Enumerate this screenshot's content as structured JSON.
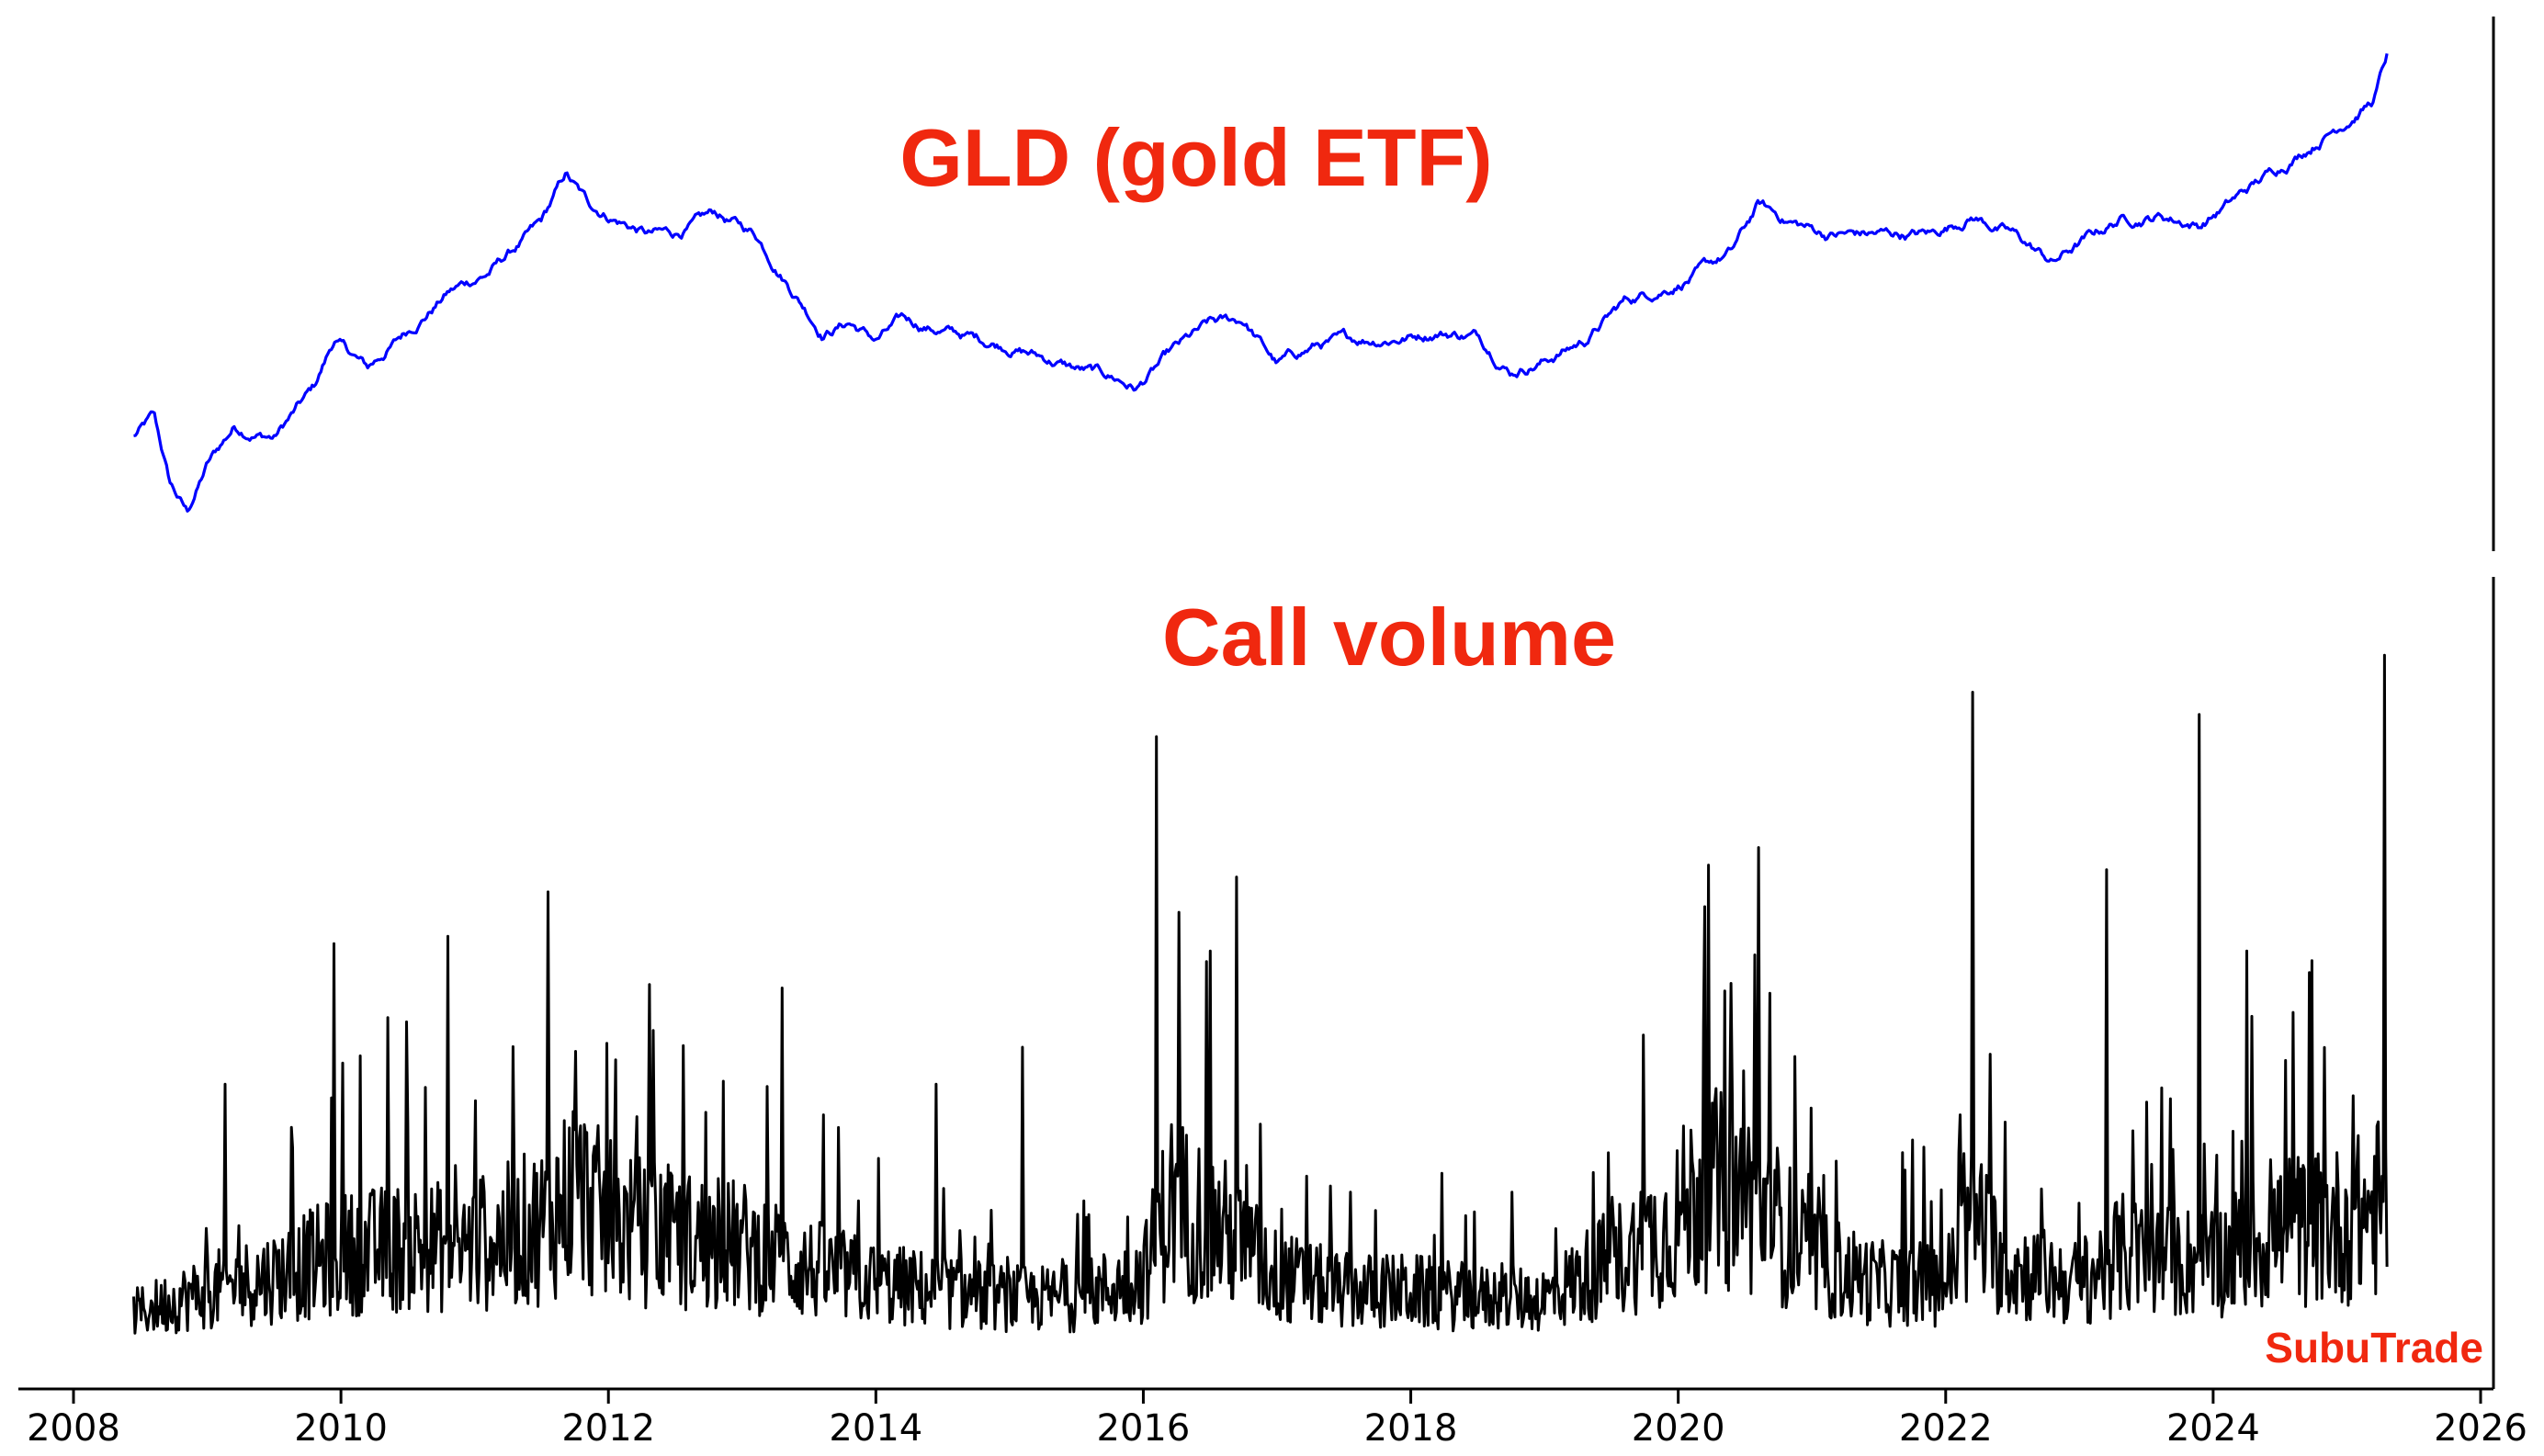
{
  "chart_data": [
    {
      "type": "line",
      "title": "GLD (gold ETF)",
      "title_color": "#f0280f",
      "xlabel": "",
      "ylabel": "",
      "x_ticks": [
        "2008",
        "2010",
        "2012",
        "2014",
        "2016",
        "2018",
        "2020",
        "2022",
        "2024",
        "2026"
      ],
      "xlim": [
        2008,
        2026
      ],
      "grid": false,
      "series": [
        {
          "color": "#0000ff",
          "points": [
            [
              2008.45,
              0.18
            ],
            [
              2008.6,
              0.22
            ],
            [
              2008.72,
              0.08
            ],
            [
              2008.85,
              0.02
            ],
            [
              2009.0,
              0.12
            ],
            [
              2009.2,
              0.2
            ],
            [
              2009.5,
              0.18
            ],
            [
              2009.8,
              0.28
            ],
            [
              2009.95,
              0.38
            ],
            [
              2010.2,
              0.32
            ],
            [
              2010.5,
              0.4
            ],
            [
              2010.8,
              0.48
            ],
            [
              2011.1,
              0.52
            ],
            [
              2011.5,
              0.62
            ],
            [
              2011.68,
              0.72
            ],
            [
              2011.85,
              0.66
            ],
            [
              2012.0,
              0.64
            ],
            [
              2012.3,
              0.6
            ],
            [
              2012.5,
              0.6
            ],
            [
              2012.8,
              0.64
            ],
            [
              2013.1,
              0.6
            ],
            [
              2013.3,
              0.52
            ],
            [
              2013.6,
              0.4
            ],
            [
              2013.8,
              0.42
            ],
            [
              2014.0,
              0.38
            ],
            [
              2014.2,
              0.42
            ],
            [
              2014.5,
              0.4
            ],
            [
              2014.8,
              0.38
            ],
            [
              2015.0,
              0.37
            ],
            [
              2015.2,
              0.35
            ],
            [
              2015.5,
              0.32
            ],
            [
              2015.8,
              0.3
            ],
            [
              2015.95,
              0.28
            ],
            [
              2016.2,
              0.35
            ],
            [
              2016.5,
              0.41
            ],
            [
              2016.75,
              0.42
            ],
            [
              2017.0,
              0.33
            ],
            [
              2017.3,
              0.37
            ],
            [
              2017.6,
              0.38
            ],
            [
              2018.0,
              0.39
            ],
            [
              2018.2,
              0.4
            ],
            [
              2018.5,
              0.39
            ],
            [
              2018.75,
              0.32
            ],
            [
              2019.0,
              0.34
            ],
            [
              2019.3,
              0.38
            ],
            [
              2019.6,
              0.46
            ],
            [
              2019.9,
              0.49
            ],
            [
              2020.15,
              0.52
            ],
            [
              2020.4,
              0.56
            ],
            [
              2020.6,
              0.66
            ],
            [
              2020.8,
              0.63
            ],
            [
              2021.1,
              0.6
            ],
            [
              2021.3,
              0.6
            ],
            [
              2021.6,
              0.6
            ],
            [
              2021.9,
              0.6
            ],
            [
              2022.2,
              0.64
            ],
            [
              2022.5,
              0.6
            ],
            [
              2022.8,
              0.54
            ],
            [
              2023.0,
              0.58
            ],
            [
              2023.3,
              0.63
            ],
            [
              2023.6,
              0.64
            ],
            [
              2023.9,
              0.62
            ],
            [
              2024.2,
              0.68
            ],
            [
              2024.5,
              0.74
            ],
            [
              2024.8,
              0.8
            ],
            [
              2025.0,
              0.84
            ],
            [
              2025.2,
              0.88
            ],
            [
              2025.3,
              0.97
            ]
          ]
        }
      ]
    },
    {
      "type": "line",
      "title": "Call volume",
      "title_color": "#f0280f",
      "xlabel": "",
      "ylabel": "",
      "x_ticks": [
        "2008",
        "2010",
        "2012",
        "2014",
        "2016",
        "2018",
        "2020",
        "2022",
        "2024",
        "2026"
      ],
      "xlim": [
        2008,
        2026
      ],
      "grid": false,
      "series": [
        {
          "color": "#000000",
          "baseline": [
            [
              2008.45,
              0.05
            ],
            [
              2009.0,
              0.08
            ],
            [
              2009.5,
              0.1
            ],
            [
              2010.0,
              0.13
            ],
            [
              2010.5,
              0.14
            ],
            [
              2011.0,
              0.14
            ],
            [
              2011.5,
              0.17
            ],
            [
              2011.75,
              0.22
            ],
            [
              2012.0,
              0.17
            ],
            [
              2012.5,
              0.15
            ],
            [
              2013.0,
              0.14
            ],
            [
              2013.5,
              0.11
            ],
            [
              2014.0,
              0.09
            ],
            [
              2014.5,
              0.08
            ],
            [
              2015.0,
              0.07
            ],
            [
              2015.5,
              0.07
            ],
            [
              2016.0,
              0.1
            ],
            [
              2016.2,
              0.2
            ],
            [
              2016.6,
              0.16
            ],
            [
              2017.0,
              0.1
            ],
            [
              2017.5,
              0.08
            ],
            [
              2018.0,
              0.08
            ],
            [
              2018.5,
              0.07
            ],
            [
              2019.0,
              0.07
            ],
            [
              2019.5,
              0.12
            ],
            [
              2019.9,
              0.16
            ],
            [
              2020.2,
              0.22
            ],
            [
              2020.6,
              0.2
            ],
            [
              2021.0,
              0.12
            ],
            [
              2021.5,
              0.09
            ],
            [
              2022.0,
              0.09
            ],
            [
              2022.2,
              0.17
            ],
            [
              2022.5,
              0.11
            ],
            [
              2023.0,
              0.09
            ],
            [
              2023.3,
              0.13
            ],
            [
              2023.6,
              0.12
            ],
            [
              2024.0,
              0.12
            ],
            [
              2024.5,
              0.16
            ],
            [
              2025.0,
              0.17
            ],
            [
              2025.3,
              0.2
            ]
          ],
          "spikes": [
            [
              2009.13,
              0.36
            ],
            [
              2009.95,
              0.55
            ],
            [
              2010.35,
              0.45
            ],
            [
              2010.8,
              0.56
            ],
            [
              2011.55,
              0.62
            ],
            [
              2013.3,
              0.49
            ],
            [
              2014.45,
              0.36
            ],
            [
              2015.1,
              0.41
            ],
            [
              2016.1,
              0.83
            ],
            [
              2016.5,
              0.54
            ],
            [
              2016.7,
              0.64
            ],
            [
              2020.2,
              0.6
            ],
            [
              2020.6,
              0.68
            ],
            [
              2022.2,
              0.89
            ],
            [
              2023.2,
              0.65
            ],
            [
              2023.9,
              0.86
            ],
            [
              2024.25,
              0.54
            ],
            [
              2025.28,
              0.94
            ]
          ]
        }
      ]
    }
  ],
  "watermark": "SubuTrade",
  "watermark_color": "#f0280f"
}
